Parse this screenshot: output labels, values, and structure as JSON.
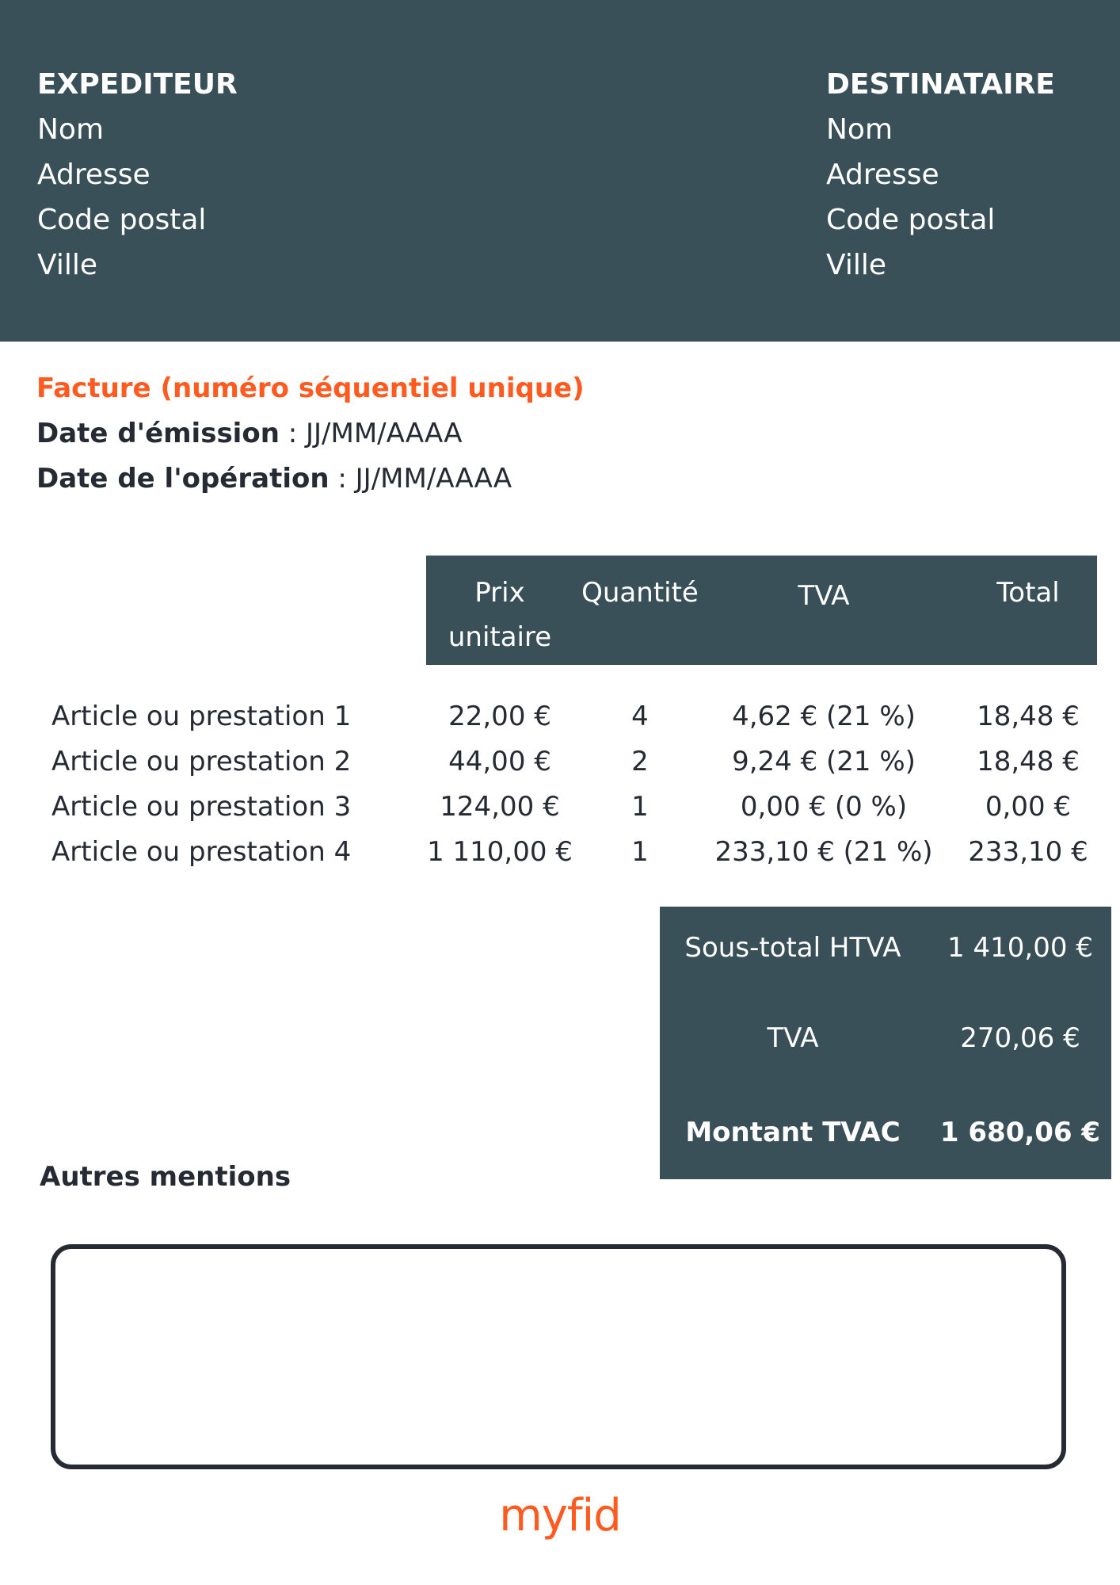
{
  "colors": {
    "header_bg": "#3a5058",
    "accent": "#ff5a1f",
    "text": "#262a33"
  },
  "sender": {
    "title": "EXPEDITEUR",
    "lines": [
      "Nom",
      "Adresse",
      "Code postal",
      "Ville"
    ]
  },
  "recipient": {
    "title": "DESTINATAIRE",
    "lines": [
      "Nom",
      "Adresse",
      "Code postal",
      "Ville"
    ]
  },
  "invoice": {
    "title": "Facture (numéro séquentiel unique)",
    "issue_date_label": "Date d'émission",
    "issue_date_value": " : JJ/MM/AAAA",
    "operation_date_label": "Date de l'opération",
    "operation_date_value": " : JJ/MM/AAAA"
  },
  "table": {
    "headers": {
      "price_line1": "Prix",
      "price_line2": "unitaire",
      "quantity": "Quantité",
      "vat": "TVA",
      "total": "Total"
    },
    "rows": [
      {
        "label": "Article ou prestation 1",
        "price": "22,00 €",
        "qty": "4",
        "vat": "4,62 € (21 %)",
        "total": "18,48 €"
      },
      {
        "label": "Article ou prestation 2",
        "price": "44,00 €",
        "qty": "2",
        "vat": "9,24 € (21 %)",
        "total": "18,48 €"
      },
      {
        "label": "Article ou prestation 3",
        "price": "124,00 €",
        "qty": "1",
        "vat": "0,00 € (0 %)",
        "total": "0,00 €"
      },
      {
        "label": "Article ou prestation 4",
        "price": "1 110,00 €",
        "qty": "1",
        "vat": "233,10 € (21 %)",
        "total": "233,10 €"
      }
    ]
  },
  "totals": {
    "subtotal_label": "Sous-total HTVA",
    "subtotal_value": "1 410,00 €",
    "vat_label": "TVA",
    "vat_value": "270,06 €",
    "grand_label": "Montant TVAC",
    "grand_value": "1 680,06 €"
  },
  "other": {
    "title": "Autres mentions"
  },
  "logo": {
    "text": "myfid"
  }
}
